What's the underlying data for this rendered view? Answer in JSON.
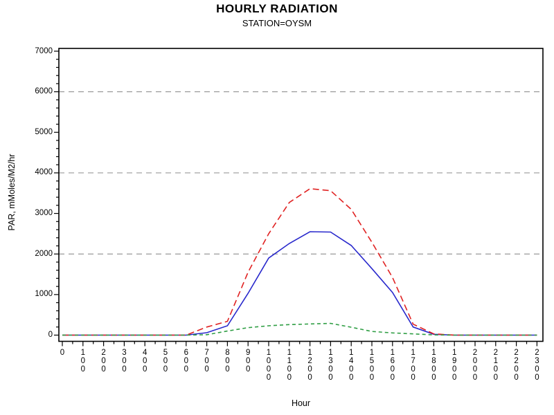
{
  "chart_data": {
    "type": "line",
    "title": "HOURLY RADIATION",
    "subtitle": "STATION=OYSM",
    "xlabel": "Hour",
    "ylabel": "PAR, mMoles/M2/hr",
    "x_tick_labels": [
      "0",
      "100",
      "200",
      "300",
      "400",
      "500",
      "600",
      "700",
      "800",
      "900",
      "1000",
      "1100",
      "1200",
      "1300",
      "1400",
      "1500",
      "1600",
      "1700",
      "1800",
      "1900",
      "2000",
      "2100",
      "2200",
      "2300"
    ],
    "y_tick_labels": [
      "0",
      "1000",
      "2000",
      "3000",
      "4000",
      "5000",
      "6000",
      "7000"
    ],
    "ylim": [
      0,
      7000
    ],
    "y_major_step": 1000,
    "y_minor_step": 200,
    "x_minor_per_major": 1,
    "gridlines_y": [
      2000,
      4000,
      6000
    ],
    "grid_on": true,
    "legend_position": "none",
    "frame_color": "#000000",
    "grid_color": "#999999",
    "series": [
      {
        "name": "blue-solid",
        "color": "#2828cc",
        "style": "solid",
        "values": [
          0,
          0,
          0,
          0,
          0,
          0,
          0,
          60,
          230,
          1030,
          1900,
          2260,
          2550,
          2540,
          2210,
          1640,
          1050,
          200,
          20,
          0,
          0,
          0,
          0,
          0
        ]
      },
      {
        "name": "red-dashed",
        "color": "#e02222",
        "style": "dashed",
        "values": [
          0,
          0,
          0,
          0,
          0,
          0,
          0,
          200,
          340,
          1550,
          2500,
          3270,
          3610,
          3560,
          3100,
          2290,
          1420,
          270,
          30,
          0,
          0,
          0,
          0,
          0
        ]
      },
      {
        "name": "green-dashed",
        "color": "#2f9e44",
        "style": "short-dashed",
        "values": [
          0,
          0,
          0,
          0,
          0,
          0,
          0,
          10,
          100,
          185,
          230,
          260,
          275,
          290,
          195,
          90,
          55,
          30,
          5,
          0,
          0,
          0,
          0,
          0
        ]
      }
    ]
  }
}
